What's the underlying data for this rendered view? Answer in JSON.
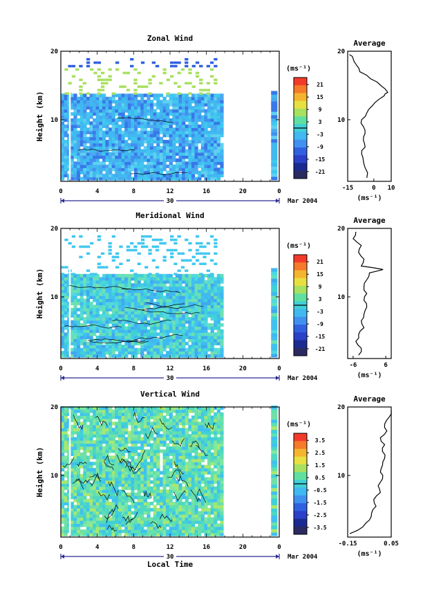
{
  "chart_data": [
    {
      "type": "heatmap",
      "title": "Zonal Wind",
      "ylabel": "Height (km)",
      "xlabel": "",
      "xticks": [
        "0",
        "4",
        "8",
        "12",
        "16",
        "20",
        "0"
      ],
      "xlim": [
        0,
        24
      ],
      "yticks": [
        "10",
        "20"
      ],
      "ylim": [
        1,
        20
      ],
      "date_label": "Mar 2004",
      "date_day": "30",
      "colorbar_unit": "(ms⁻¹)",
      "colorbar_ticks": [
        "21",
        "15",
        "9",
        "3",
        "-3",
        "-9",
        "-15",
        "-21"
      ],
      "profile_title": "Average",
      "profile_xticks": [
        "-15",
        "0",
        "10"
      ],
      "profile_xlim": [
        -15,
        10
      ],
      "profile_xlabel": "(ms⁻¹)",
      "profile_yticks": [
        "10",
        "20"
      ],
      "profile": {
        "height": [
          1.5,
          3,
          4,
          5,
          6,
          7,
          8,
          9,
          10,
          11,
          12,
          13,
          13.5,
          14,
          15,
          16,
          17,
          18,
          19,
          19.5
        ],
        "value": [
          -4,
          -5,
          -6,
          -7,
          -5,
          -6,
          -5,
          -6,
          -7,
          -4,
          -1,
          3,
          6,
          8,
          4,
          -2,
          -8,
          -10,
          -12,
          -14
        ]
      }
    },
    {
      "type": "heatmap",
      "title": "Meridional Wind",
      "ylabel": "Height (km)",
      "xlabel": "",
      "xticks": [
        "0",
        "4",
        "8",
        "12",
        "16",
        "20",
        "0"
      ],
      "xlim": [
        0,
        24
      ],
      "yticks": [
        "10",
        "20"
      ],
      "ylim": [
        1,
        20
      ],
      "date_label": "Mar 2004",
      "date_day": "30",
      "colorbar_unit": "(ms⁻¹)",
      "colorbar_ticks": [
        "21",
        "15",
        "9",
        "3",
        "-3",
        "-9",
        "-15",
        "-21"
      ],
      "profile_title": "Average",
      "profile_xticks": [
        "-6",
        "6"
      ],
      "profile_xlim": [
        -8,
        8
      ],
      "profile_xlabel": "(ms⁻¹)",
      "profile_yticks": [
        "10",
        "20"
      ],
      "profile": {
        "height": [
          1.5,
          2.5,
          3.5,
          4.5,
          5.5,
          6.5,
          7.5,
          8.5,
          9.5,
          10.5,
          11.5,
          12.5,
          13.5,
          14,
          14.5,
          15.5,
          16.5,
          17.5,
          18.5,
          19.5
        ],
        "value": [
          -4,
          -3,
          -5,
          -4,
          -2,
          -3,
          -2,
          -1,
          -2,
          -1,
          -2,
          -1,
          0,
          5,
          -3,
          -2,
          -4,
          -3,
          -6,
          -5
        ]
      }
    },
    {
      "type": "heatmap",
      "title": "Vertical Wind",
      "ylabel": "Height (km)",
      "xlabel": "Local Time",
      "xticks": [
        "0",
        "4",
        "8",
        "12",
        "16",
        "20",
        "0"
      ],
      "xlim": [
        0,
        24
      ],
      "yticks": [
        "10",
        "20"
      ],
      "ylim": [
        1,
        20
      ],
      "date_label": "Mar 2004",
      "date_day": "30",
      "colorbar_unit": "(ms⁻¹)",
      "colorbar_ticks": [
        "3.5",
        "2.5",
        "1.5",
        "0.5",
        "-0.5",
        "-1.5",
        "-2.5",
        "-3.5"
      ],
      "profile_title": "Average",
      "profile_xticks": [
        "-0.15",
        "0.05"
      ],
      "profile_xlim": [
        -0.15,
        0.05
      ],
      "profile_xlabel": "(ms⁻¹)",
      "profile_yticks": [
        "10",
        "20"
      ],
      "profile": {
        "height": [
          1.5,
          2.5,
          3.5,
          4.5,
          5.5,
          6.5,
          7.5,
          8.5,
          9.5,
          10.5,
          11.5,
          12.5,
          13.5,
          14.5,
          15.5,
          16.5,
          17.5,
          18.5,
          19.5
        ],
        "value": [
          -0.14,
          -0.08,
          -0.05,
          -0.04,
          -0.02,
          -0.03,
          0,
          -0.01,
          0.01,
          0,
          0.01,
          0.02,
          0.01,
          0.02,
          0.0,
          0.03,
          0.02,
          0.04,
          0.05
        ]
      }
    }
  ],
  "colors": {
    "colorbar": [
      "#f23a2a",
      "#f57a2a",
      "#f5b430",
      "#e8e040",
      "#a8e060",
      "#60e0a0",
      "#40d0d8",
      "#40b8f0",
      "#4090f0",
      "#3060e0",
      "#2a40c8",
      "#1a2a90",
      "#2a2a60"
    ]
  }
}
